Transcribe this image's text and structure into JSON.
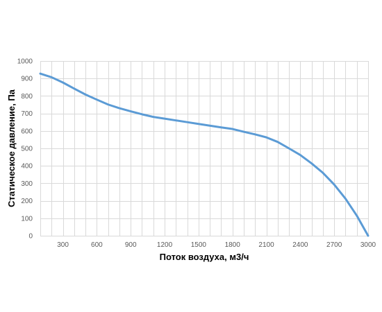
{
  "chart_data": {
    "type": "line",
    "title": "",
    "xlabel": "Поток воздуха, м3/ч",
    "ylabel": "Статическое давление, Па",
    "xlim": [
      100,
      3000
    ],
    "ylim": [
      0,
      1000
    ],
    "x_ticks": [
      300,
      600,
      900,
      1200,
      1500,
      1800,
      2100,
      2400,
      2700,
      3000
    ],
    "y_ticks": [
      0,
      100,
      200,
      300,
      400,
      500,
      600,
      700,
      800,
      900,
      1000
    ],
    "grid": true,
    "legend": "none",
    "series": [
      {
        "color": "#5b9bd5",
        "x": [
          100,
          200,
          300,
          400,
          500,
          600,
          700,
          800,
          900,
          1000,
          1100,
          1200,
          1300,
          1400,
          1500,
          1600,
          1700,
          1800,
          1900,
          2000,
          2100,
          2200,
          2300,
          2400,
          2500,
          2600,
          2700,
          2800,
          2900,
          3000
        ],
        "y": [
          928,
          907,
          877,
          842,
          808,
          779,
          751,
          730,
          712,
          695,
          680,
          670,
          660,
          650,
          640,
          630,
          620,
          611,
          595,
          580,
          563,
          537,
          500,
          462,
          414,
          360,
          293,
          212,
          115,
          0
        ]
      }
    ]
  }
}
